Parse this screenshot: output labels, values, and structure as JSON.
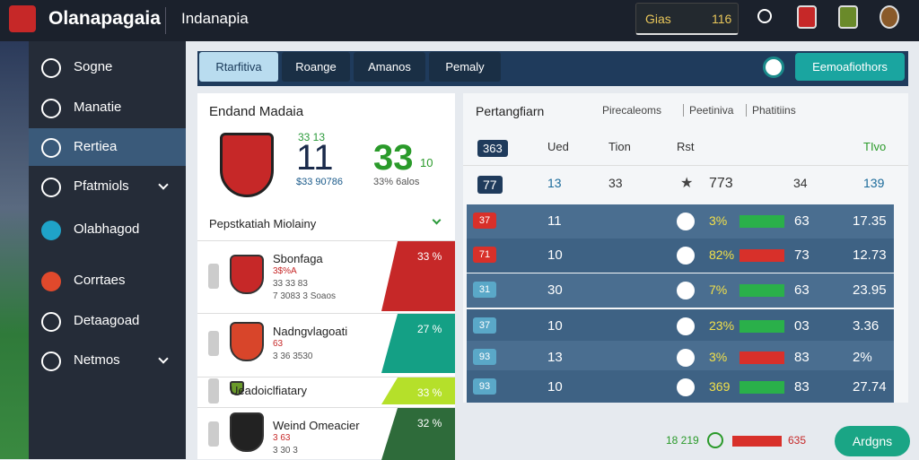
{
  "header": {
    "logo": "Olanapagaia",
    "section": "Indanapia",
    "search": {
      "label": "Gias",
      "value": "116"
    }
  },
  "sidebar": {
    "items": [
      "Sogne",
      "Manatie",
      "Rertiea",
      "Pfatmiols",
      "Olabhagod",
      "Corrtaes",
      "Detaagoad",
      "Netmos"
    ]
  },
  "tabs": [
    "Rtarfitiva",
    "Roange",
    "Amanos",
    "Pemaly"
  ],
  "action_button": "Eemoafiothors",
  "summary": {
    "title": "Endand Madaia",
    "stat1": {
      "top": "33 13",
      "value": "11",
      "caption": "$33 90786"
    },
    "stat2": {
      "value": "33",
      "suffix": "10",
      "caption": "33% 6alos"
    },
    "subtitle": "Pepstkatiah Miolainy",
    "items": [
      {
        "name": "Sbonfaga",
        "lines": [
          "3$%A",
          "33 33 83",
          "7 3083 3 Soaos"
        ],
        "tag": "33 %"
      },
      {
        "name": "Nadngvlagoati",
        "lines": [
          "63",
          "3 36 3530"
        ],
        "tag": "27 %"
      },
      {
        "name": "Ueadoiclfiatary",
        "lines": [],
        "tag": "33 %"
      },
      {
        "name": "Weind Omeacier",
        "lines": [
          "3 63",
          "3 30 3"
        ],
        "tag": "32 %"
      }
    ]
  },
  "table": {
    "title": "Pertangfiarn",
    "filters": [
      "Pirecaleoms",
      "Peetiniva",
      "Phatitiins"
    ],
    "columns": [
      "363",
      "Ued",
      "Tion",
      "Rst",
      "TIvo"
    ],
    "top_row": [
      "77",
      "13",
      "33",
      "773",
      "34",
      "139"
    ],
    "rows": [
      [
        "37",
        "11",
        "3%",
        "63",
        "17.35"
      ],
      [
        "71",
        "10",
        "82%",
        "73",
        "12.73"
      ],
      [
        "31",
        "30",
        "7%",
        "63",
        "23.95"
      ],
      [
        "37",
        "10",
        "23%",
        "03",
        "3.36"
      ],
      [
        "93",
        "13",
        "3%",
        "83",
        "2%"
      ],
      [
        "93",
        "10",
        "369",
        "83",
        "27.74"
      ]
    ]
  },
  "footer": {
    "value": "18 219",
    "score": "635",
    "button": "Ardgns"
  }
}
